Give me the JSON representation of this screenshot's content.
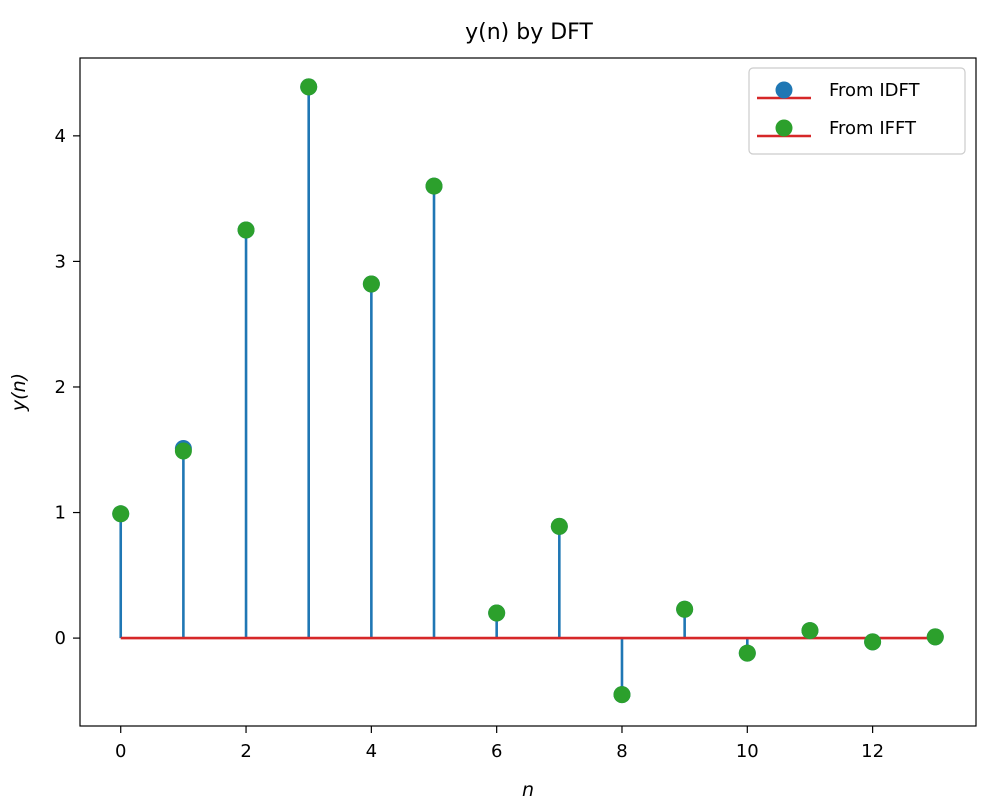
{
  "chart_data": {
    "type": "stem",
    "title": "y(n) by DFT",
    "xlabel": "n",
    "ylabel": "y(n)",
    "x": [
      0,
      1,
      2,
      3,
      4,
      5,
      6,
      7,
      8,
      9,
      10,
      11,
      12,
      13
    ],
    "xlim": [
      -0.65,
      13.65
    ],
    "ylim": [
      -0.7,
      4.62
    ],
    "xticks": [
      0,
      2,
      4,
      6,
      8,
      10,
      12
    ],
    "yticks": [
      0,
      1,
      2,
      3,
      4
    ],
    "series": [
      {
        "name": "From IDFT",
        "values": [
          0.99,
          1.51,
          3.25,
          4.39,
          2.82,
          3.6,
          0.2,
          0.89,
          -0.45,
          0.23,
          -0.12,
          0.06,
          -0.03,
          0.01
        ],
        "marker_color": "#1f77b4",
        "stem_color": "#1f77b4",
        "baseline_color": "#d62728"
      },
      {
        "name": "From IFFT",
        "values": [
          0.99,
          1.49,
          3.25,
          4.39,
          2.82,
          3.6,
          0.2,
          0.89,
          -0.45,
          0.23,
          -0.12,
          0.06,
          -0.03,
          0.01
        ],
        "marker_color": "#2ca02c",
        "stem_color": "#1f77b4",
        "baseline_color": "#d62728"
      }
    ],
    "legend_position": "top-right",
    "grid": false
  }
}
